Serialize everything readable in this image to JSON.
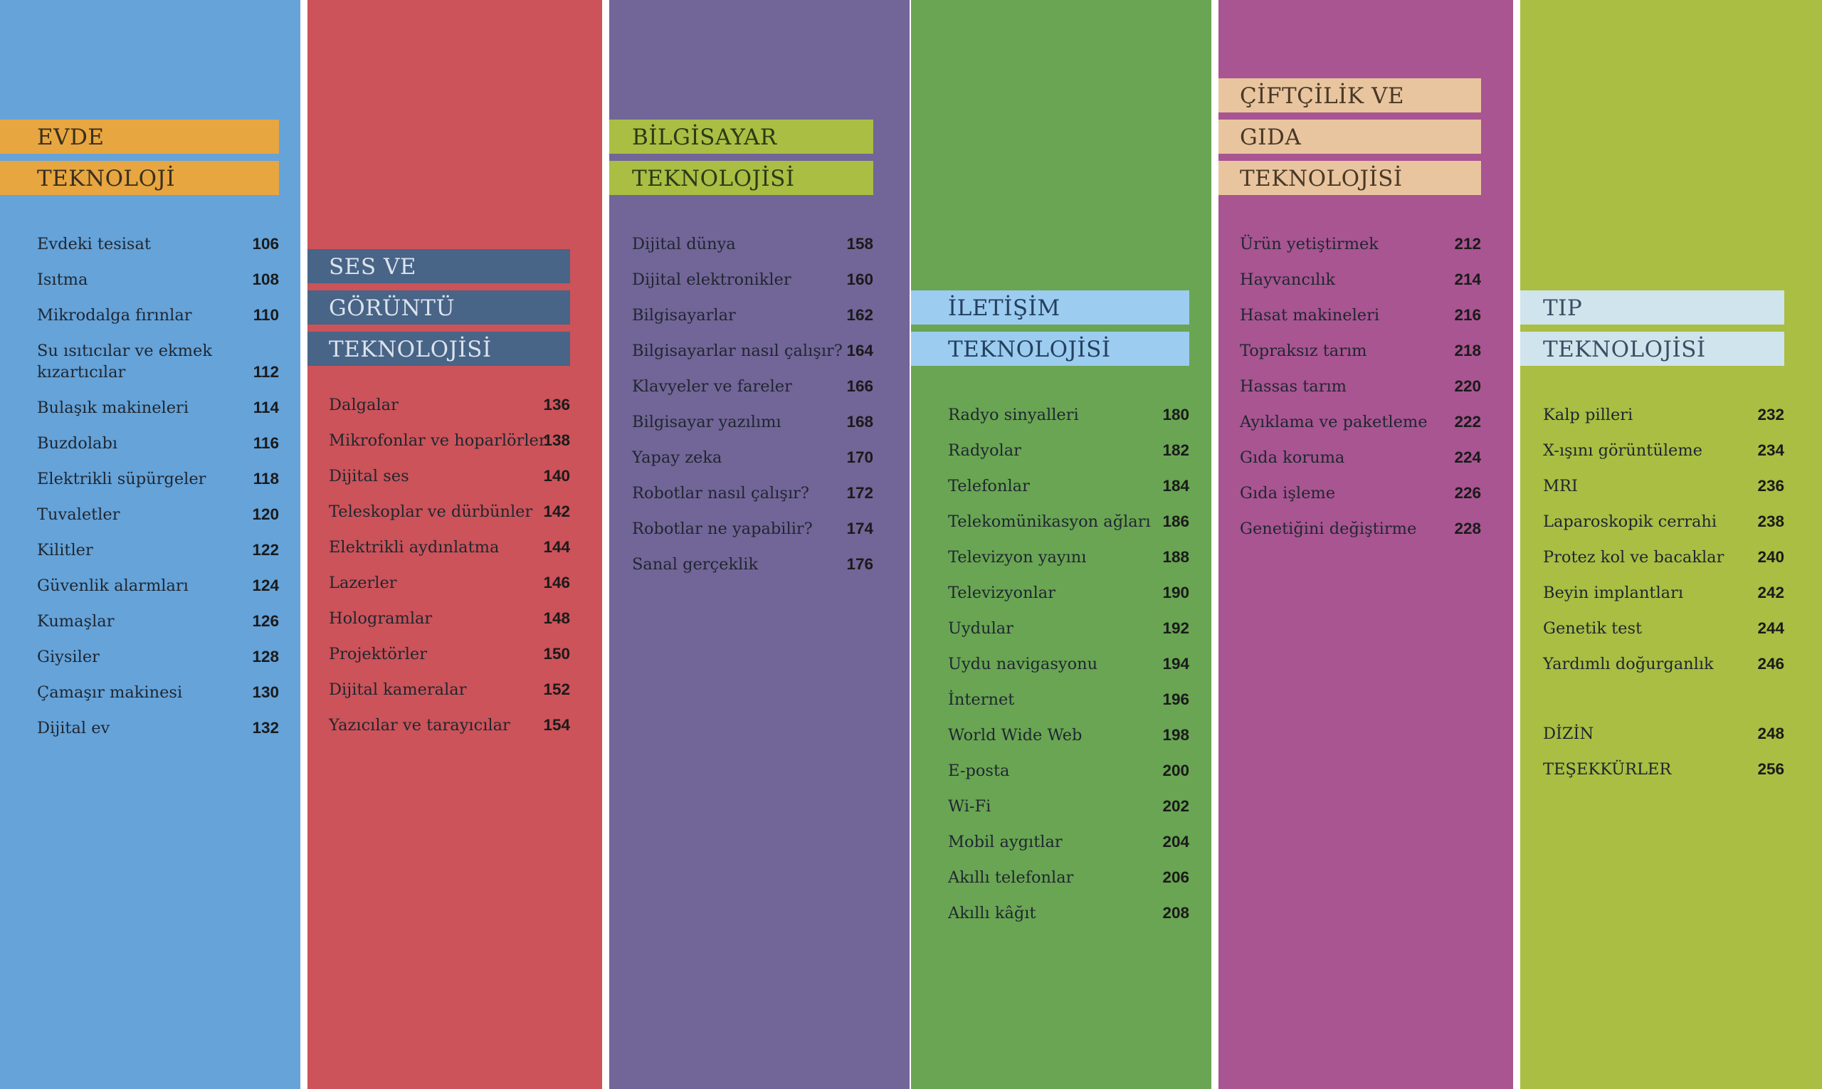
{
  "columns": [
    {
      "heading": [
        "EVDE",
        "TEKNOLOJİ"
      ],
      "items": [
        {
          "label": "Evdeki tesisat",
          "page": "106"
        },
        {
          "label": "Isıtma",
          "page": "108"
        },
        {
          "label": "Mikrodalga fırınlar",
          "page": "110"
        },
        {
          "label": "Su ısıtıcılar ve ekmek\nkızartıcılar",
          "page": "112"
        },
        {
          "label": "Bulaşık makineleri",
          "page": "114"
        },
        {
          "label": "Buzdolabı",
          "page": "116"
        },
        {
          "label": "Elektrikli süpürgeler",
          "page": "118"
        },
        {
          "label": "Tuvaletler",
          "page": "120"
        },
        {
          "label": "Kilitler",
          "page": "122"
        },
        {
          "label": "Güvenlik alarmları",
          "page": "124"
        },
        {
          "label": "Kumaşlar",
          "page": "126"
        },
        {
          "label": "Giysiler",
          "page": "128"
        },
        {
          "label": "Çamaşır makinesi",
          "page": "130"
        },
        {
          "label": "Dijital ev",
          "page": "132"
        }
      ]
    },
    {
      "heading": [
        "SES VE",
        "GÖRÜNTÜ",
        "TEKNOLOJİSİ"
      ],
      "items": [
        {
          "label": "Dalgalar",
          "page": "136"
        },
        {
          "label": "Mikrofonlar ve hoparlörler",
          "page": "138"
        },
        {
          "label": "Dijital ses",
          "page": "140"
        },
        {
          "label": "Teleskoplar ve dürbünler",
          "page": "142"
        },
        {
          "label": "Elektrikli aydınlatma",
          "page": "144"
        },
        {
          "label": "Lazerler",
          "page": "146"
        },
        {
          "label": "Hologramlar",
          "page": "148"
        },
        {
          "label": "Projektörler",
          "page": "150"
        },
        {
          "label": "Dijital kameralar",
          "page": "152"
        },
        {
          "label": "Yazıcılar ve tarayıcılar",
          "page": "154"
        }
      ]
    },
    {
      "heading": [
        "BİLGİSAYAR",
        "TEKNOLOJİSİ"
      ],
      "items": [
        {
          "label": "Dijital dünya",
          "page": "158"
        },
        {
          "label": "Dijital elektronikler",
          "page": "160"
        },
        {
          "label": "Bilgisayarlar",
          "page": "162"
        },
        {
          "label": "Bilgisayarlar nasıl çalışır?",
          "page": "164"
        },
        {
          "label": "Klavyeler ve fareler",
          "page": "166"
        },
        {
          "label": "Bilgisayar yazılımı",
          "page": "168"
        },
        {
          "label": "Yapay zeka",
          "page": "170"
        },
        {
          "label": "Robotlar nasıl çalışır?",
          "page": "172"
        },
        {
          "label": "Robotlar ne yapabilir?",
          "page": "174"
        },
        {
          "label": "Sanal gerçeklik",
          "page": "176"
        }
      ]
    },
    {
      "heading": [
        "İLETİŞİM",
        "TEKNOLOJİSİ"
      ],
      "items": [
        {
          "label": "Radyo sinyalleri",
          "page": "180"
        },
        {
          "label": "Radyolar",
          "page": "182"
        },
        {
          "label": "Telefonlar",
          "page": "184"
        },
        {
          "label": "Telekomünikasyon ağları",
          "page": "186"
        },
        {
          "label": "Televizyon yayını",
          "page": "188"
        },
        {
          "label": "Televizyonlar",
          "page": "190"
        },
        {
          "label": "Uydular",
          "page": "192"
        },
        {
          "label": "Uydu navigasyonu",
          "page": "194"
        },
        {
          "label": "İnternet",
          "page": "196"
        },
        {
          "label": "World Wide Web",
          "page": "198"
        },
        {
          "label": "E-posta",
          "page": "200"
        },
        {
          "label": "Wi-Fi",
          "page": "202"
        },
        {
          "label": "Mobil aygıtlar",
          "page": "204"
        },
        {
          "label": "Akıllı telefonlar",
          "page": "206"
        },
        {
          "label": "Akıllı kâğıt",
          "page": "208"
        }
      ]
    },
    {
      "heading": [
        "ÇİFTÇİLİK VE",
        "GIDA",
        "TEKNOLOJİSİ"
      ],
      "items": [
        {
          "label": "Ürün yetiştirmek",
          "page": "212"
        },
        {
          "label": "Hayvancılık",
          "page": "214"
        },
        {
          "label": "Hasat makineleri",
          "page": "216"
        },
        {
          "label": "Topraksız tarım",
          "page": "218"
        },
        {
          "label": "Hassas tarım",
          "page": "220"
        },
        {
          "label": "Ayıklama ve paketleme",
          "page": "222"
        },
        {
          "label": "Gıda koruma",
          "page": "224"
        },
        {
          "label": "Gıda işleme",
          "page": "226"
        },
        {
          "label": "Genetiğini değiştirme",
          "page": "228"
        }
      ]
    },
    {
      "heading": [
        "TIP",
        "TEKNOLOJİSİ"
      ],
      "items": [
        {
          "label": "Kalp pilleri",
          "page": "232"
        },
        {
          "label": "X-ışını görüntüleme",
          "page": "234"
        },
        {
          "label": "MRI",
          "page": "236"
        },
        {
          "label": "Laparoskopik cerrahi",
          "page": "238"
        },
        {
          "label": "Protez kol ve bacaklar",
          "page": "240"
        },
        {
          "label": "Beyin implantları",
          "page": "242"
        },
        {
          "label": "Genetik test",
          "page": "244"
        },
        {
          "label": "Yardımlı doğurganlık",
          "page": "246"
        },
        {
          "label": "DİZİN",
          "page": "248"
        },
        {
          "label": "TEŞEKKÜRLER",
          "page": "256"
        }
      ]
    }
  ],
  "colors": {
    "column_backgrounds": [
      "#65a3d9",
      "#cb5359",
      "#726597",
      "#69a553",
      "#a85591",
      "#a9be43"
    ],
    "banner_backgrounds": [
      "#e7a640",
      "#486487",
      "#a9be43",
      "#9cccf0",
      "#e8c59f",
      "#cfe4ec"
    ],
    "banner_text": [
      "#3a2f20",
      "#dce3ec",
      "#2b3a18",
      "#24405e",
      "#4a3826",
      "#3a4f63"
    ]
  }
}
